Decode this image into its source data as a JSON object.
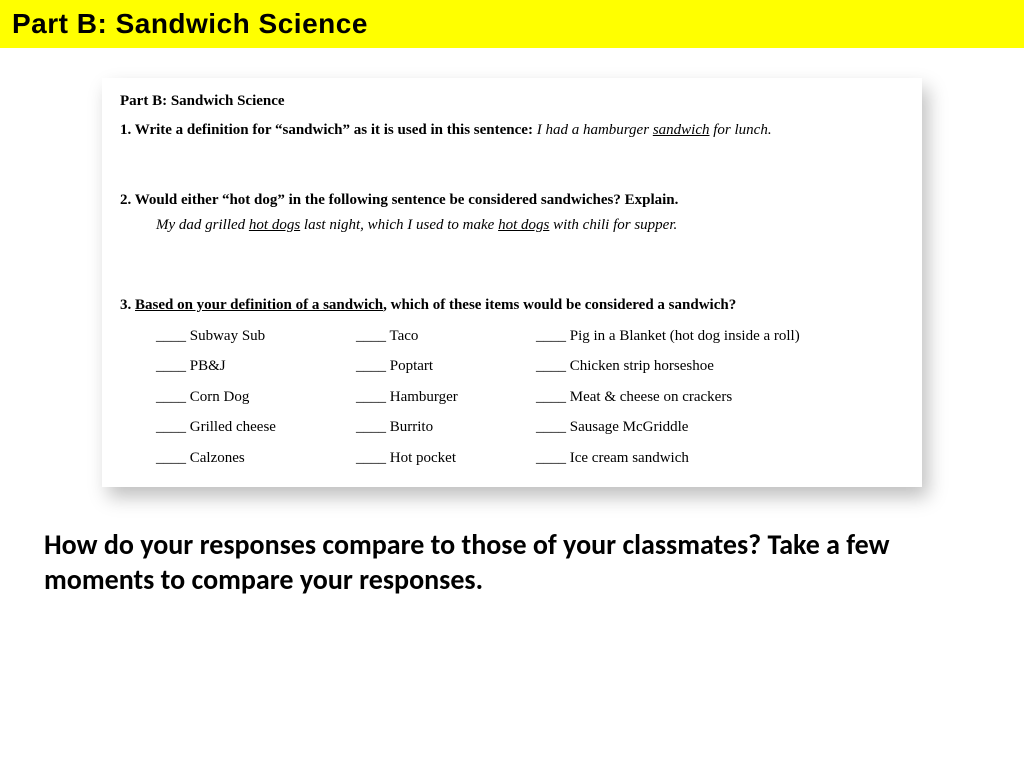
{
  "banner": {
    "title": "Part B:  Sandwich Science",
    "background_color": "#ffff00",
    "text_color": "#000000",
    "font_family": "Impact",
    "font_size_pt": 22
  },
  "worksheet": {
    "background_color": "#ffffff",
    "shadow_color": "rgba(0,0,0,0.25)",
    "heading": "Part B:  Sandwich Science",
    "font_family": "Times New Roman",
    "font_size_pt": 11,
    "q1": {
      "prompt_prefix": "1.  Write a definition for “sandwich” as it is used in this sentence: ",
      "italic_prefix": "I had a hamburger ",
      "italic_underlined": "sandwich",
      "italic_suffix": " for lunch."
    },
    "q2": {
      "prompt": "2.  Would either “hot dog” in the following sentence be considered sandwiches?  Explain.",
      "sentence_parts": {
        "a": "My dad grilled ",
        "b": "hot dogs",
        "c": " last night, which I used to make ",
        "d": "hot dogs",
        "e": " with chili for supper."
      }
    },
    "q3": {
      "prompt_num": "3.  ",
      "prompt_underlined": "Based on your definition of a sandwich",
      "prompt_suffix": ", which of these items would be considered a sandwich?",
      "columns": 3,
      "items": {
        "r0c0": "Subway Sub",
        "r0c1": "Taco",
        "r0c2": " Pig in a Blanket (hot dog inside a roll)",
        "r1c0": "PB&J",
        "r1c1": "Poptart",
        "r1c2": "Chicken strip horseshoe",
        "r2c0": "Corn Dog",
        "r2c1": "Hamburger",
        "r2c2": "Meat & cheese on crackers",
        "r3c0": "Grilled cheese",
        "r3c1": "Burrito",
        "r3c2": "Sausage McGriddle",
        "r4c0": "Calzones",
        "r4c1": "Hot pocket",
        "r4c2": "Ice cream sandwich"
      }
    }
  },
  "footer": {
    "text": "How do your responses compare to those of your classmates? Take a few moments to compare your responses.",
    "font_family": "Calibri",
    "font_size_pt": 22,
    "font_weight": "bold",
    "color": "#000000"
  }
}
